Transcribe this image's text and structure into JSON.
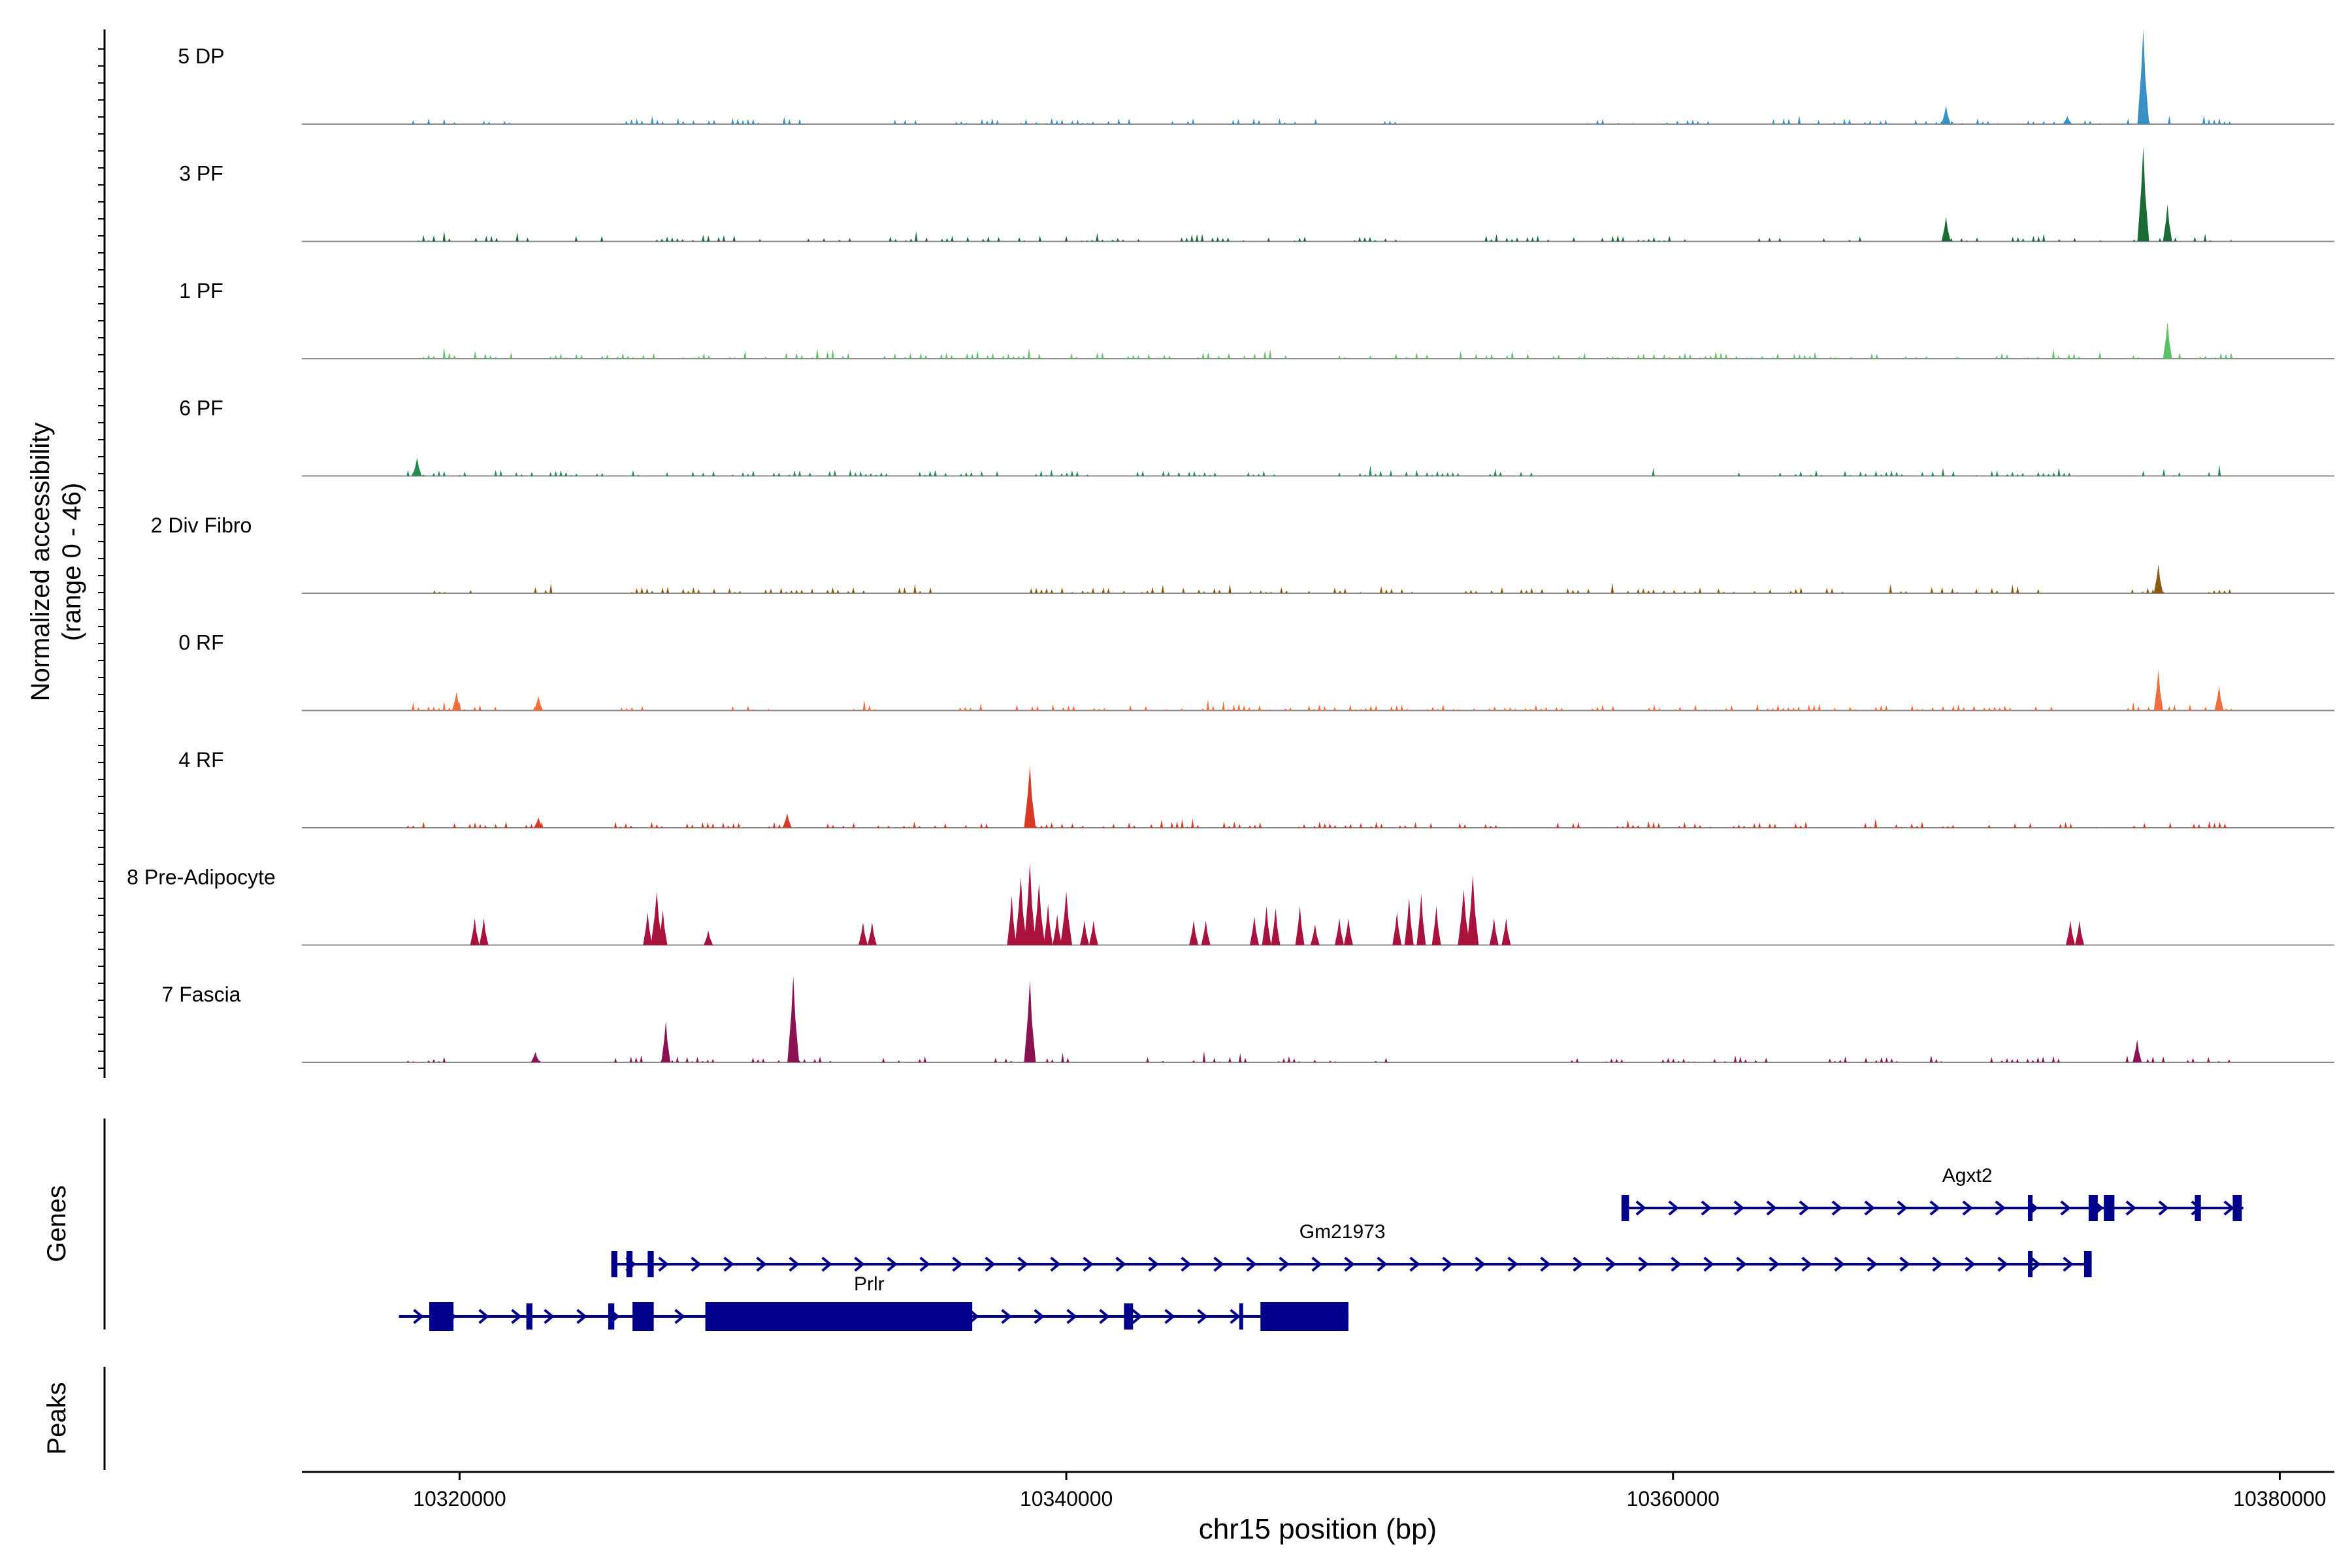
{
  "chart_data": {
    "type": "area",
    "title": "",
    "ylabel_line1": "Normalized accessibility",
    "ylabel_line2": "(range 0 - 46)",
    "xlabel": "chr15 position (bp)",
    "chromosome": "chr15",
    "xlim": [
      10314800,
      10381800
    ],
    "ylim": [
      0,
      46
    ],
    "x_ticks": [
      10320000,
      10340000,
      10360000,
      10380000
    ],
    "x_tick_labels": [
      "10320000",
      "10340000",
      "10360000",
      "10380000"
    ],
    "tracks": [
      {
        "name": "5 DP",
        "color": "#3a8fc7",
        "regions": [
          [
            10318300,
            10320300
          ],
          [
            10320800,
            10321800
          ],
          [
            10325500,
            10328500
          ],
          [
            10329000,
            10331800
          ],
          [
            10333500,
            10335200
          ],
          [
            10336200,
            10337800
          ],
          [
            10338500,
            10342200
          ],
          [
            10343500,
            10345000
          ],
          [
            10345500,
            10348500
          ],
          [
            10350500,
            10351000
          ],
          [
            10357000,
            10359200
          ],
          [
            10359800,
            10362500
          ],
          [
            10362800,
            10364200
          ],
          [
            10364800,
            10367200
          ],
          [
            10368000,
            10370800
          ],
          [
            10371200,
            10374500
          ],
          [
            10375000,
            10376500
          ],
          [
            10377500,
            10378500
          ]
        ],
        "peaks": [
          [
            10369000,
            9
          ],
          [
            10375500,
            46
          ],
          [
            10373000,
            4
          ]
        ]
      },
      {
        "name": "3 PF",
        "color": "#1a6b35",
        "regions": [
          [
            10318300,
            10319800
          ],
          [
            10320200,
            10322300
          ],
          [
            10323500,
            10325000
          ],
          [
            10326500,
            10330500
          ],
          [
            10331500,
            10333500
          ],
          [
            10334200,
            10339500
          ],
          [
            10340000,
            10342500
          ],
          [
            10343800,
            10346000
          ],
          [
            10346500,
            10348000
          ],
          [
            10349500,
            10351000
          ],
          [
            10353500,
            10357000
          ],
          [
            10357500,
            10361500
          ],
          [
            10362500,
            10364000
          ],
          [
            10364800,
            10366800
          ],
          [
            10369000,
            10370500
          ],
          [
            10371200,
            10374200
          ],
          [
            10375200,
            10376600
          ],
          [
            10377200,
            10378500
          ]
        ],
        "peaks": [
          [
            10369000,
            12
          ],
          [
            10375500,
            46
          ],
          [
            10376300,
            18
          ]
        ]
      },
      {
        "name": "1 PF",
        "color": "#5cc064",
        "regions": [
          [
            10318300,
            10322000
          ],
          [
            10323000,
            10326500
          ],
          [
            10327200,
            10333000
          ],
          [
            10333500,
            10339500
          ],
          [
            10340000,
            10343500
          ],
          [
            10344000,
            10348000
          ],
          [
            10349000,
            10352000
          ],
          [
            10353000,
            10357200
          ],
          [
            10357500,
            10363500
          ],
          [
            10364000,
            10367000
          ],
          [
            10367500,
            10370000
          ],
          [
            10370500,
            10374500
          ],
          [
            10375000,
            10378500
          ]
        ],
        "peaks": [
          [
            10376300,
            18
          ]
        ]
      },
      {
        "name": "6 PF",
        "color": "#228b4f",
        "regions": [
          [
            10318300,
            10322800
          ],
          [
            10323000,
            10326000
          ],
          [
            10326500,
            10328500
          ],
          [
            10329000,
            10331800
          ],
          [
            10332200,
            10334200
          ],
          [
            10335000,
            10337800
          ],
          [
            10339000,
            10340800
          ],
          [
            10341500,
            10345200
          ],
          [
            10346000,
            10347000
          ],
          [
            10349000,
            10353000
          ],
          [
            10353800,
            10355500
          ],
          [
            10358500,
            10359500
          ],
          [
            10362000,
            10365000
          ],
          [
            10365500,
            10369500
          ],
          [
            10370000,
            10373200
          ],
          [
            10375500,
            10377000
          ],
          [
            10377500,
            10378500
          ]
        ],
        "peaks": [
          [
            10318600,
            9
          ]
        ]
      },
      {
        "name": "2 Div Fibro",
        "color": "#8b5a12",
        "regions": [
          [
            10319000,
            10321500
          ],
          [
            10322500,
            10323200
          ],
          [
            10325500,
            10333500
          ],
          [
            10334500,
            10336500
          ],
          [
            10338500,
            10342000
          ],
          [
            10342500,
            10347500
          ],
          [
            10348000,
            10351500
          ],
          [
            10353000,
            10354500
          ],
          [
            10355000,
            10357500
          ],
          [
            10358000,
            10361000
          ],
          [
            10361500,
            10366000
          ],
          [
            10367000,
            10369500
          ],
          [
            10370000,
            10372500
          ],
          [
            10374800,
            10376800
          ],
          [
            10377500,
            10378500
          ]
        ],
        "peaks": [
          [
            10376000,
            14
          ]
        ]
      },
      {
        "name": "0 RF",
        "color": "#ef6e3d",
        "regions": [
          [
            10318300,
            10320300
          ],
          [
            10320500,
            10321500
          ],
          [
            10322300,
            10322900
          ],
          [
            10325000,
            10326200
          ],
          [
            10329000,
            10330500
          ],
          [
            10333000,
            10333800
          ],
          [
            10336500,
            10337200
          ],
          [
            10338200,
            10344000
          ],
          [
            10344500,
            10347500
          ],
          [
            10348000,
            10356500
          ],
          [
            10357000,
            10372500
          ],
          [
            10375000,
            10378500
          ]
        ],
        "peaks": [
          [
            10319900,
            9
          ],
          [
            10322600,
            7
          ],
          [
            10376000,
            20
          ],
          [
            10378000,
            12
          ]
        ]
      },
      {
        "name": "4 RF",
        "color": "#d83a25",
        "regions": [
          [
            10318300,
            10322000
          ],
          [
            10322200,
            10323000
          ],
          [
            10324800,
            10327000
          ],
          [
            10327500,
            10329500
          ],
          [
            10330200,
            10331000
          ],
          [
            10331800,
            10333000
          ],
          [
            10333800,
            10337500
          ],
          [
            10338500,
            10342500
          ],
          [
            10342800,
            10344500
          ],
          [
            10345200,
            10346500
          ],
          [
            10347500,
            10350500
          ],
          [
            10351000,
            10352500
          ],
          [
            10352800,
            10354500
          ],
          [
            10356200,
            10357000
          ],
          [
            10358000,
            10361500
          ],
          [
            10362000,
            10364500
          ],
          [
            10366000,
            10372000
          ],
          [
            10372600,
            10374000
          ],
          [
            10375200,
            10376500
          ],
          [
            10377000,
            10378200
          ]
        ],
        "peaks": [
          [
            10338800,
            30
          ],
          [
            10330800,
            7
          ],
          [
            10322600,
            5
          ]
        ]
      },
      {
        "name": "8 Pre-Adipocyte",
        "color": "#a8123c",
        "regions": [],
        "peaks": [
          [
            10320500,
            13
          ],
          [
            10320800,
            13
          ],
          [
            10326200,
            16
          ],
          [
            10326500,
            26
          ],
          [
            10326700,
            17
          ],
          [
            10328200,
            7
          ],
          [
            10333300,
            11
          ],
          [
            10333600,
            11
          ],
          [
            10338200,
            24
          ],
          [
            10338500,
            33
          ],
          [
            10338800,
            40
          ],
          [
            10339100,
            30
          ],
          [
            10339400,
            20
          ],
          [
            10339700,
            15
          ],
          [
            10340000,
            26
          ],
          [
            10340600,
            12
          ],
          [
            10340900,
            12
          ],
          [
            10344200,
            12
          ],
          [
            10344600,
            12
          ],
          [
            10346200,
            14
          ],
          [
            10346600,
            19
          ],
          [
            10346900,
            18
          ],
          [
            10347700,
            19
          ],
          [
            10348200,
            10
          ],
          [
            10349000,
            13
          ],
          [
            10349300,
            13
          ],
          [
            10350900,
            16
          ],
          [
            10351300,
            23
          ],
          [
            10351700,
            25
          ],
          [
            10352200,
            19
          ],
          [
            10353100,
            27
          ],
          [
            10353400,
            34
          ],
          [
            10354100,
            13
          ],
          [
            10354500,
            13
          ],
          [
            10373100,
            12
          ],
          [
            10373400,
            12
          ]
        ]
      },
      {
        "name": "7 Fascia",
        "color": "#8b1252",
        "regions": [
          [
            10318300,
            10320500
          ],
          [
            10322300,
            10322800
          ],
          [
            10324800,
            10327200
          ],
          [
            10327500,
            10328600
          ],
          [
            10329500,
            10332500
          ],
          [
            10333800,
            10334500
          ],
          [
            10335000,
            10335500
          ],
          [
            10337500,
            10340200
          ],
          [
            10342000,
            10343200
          ],
          [
            10344200,
            10346000
          ],
          [
            10347000,
            10349000
          ],
          [
            10350200,
            10350700
          ],
          [
            10356500,
            10357000
          ],
          [
            10357800,
            10358500
          ],
          [
            10359500,
            10363500
          ],
          [
            10365000,
            10367500
          ],
          [
            10368000,
            10369000
          ],
          [
            10370500,
            10373000
          ],
          [
            10374800,
            10376200
          ],
          [
            10376800,
            10378500
          ]
        ],
        "peaks": [
          [
            10331000,
            42
          ],
          [
            10326800,
            20
          ],
          [
            10338800,
            40
          ],
          [
            10375300,
            11
          ],
          [
            10322500,
            5
          ]
        ]
      }
    ],
    "genes_label": "Genes",
    "peaks_label": "Peaks",
    "genes": [
      {
        "name": "Agxt2",
        "row": 0,
        "start": 10358300,
        "end": 10378800,
        "exons": [
          [
            10358300,
            10358550
          ],
          [
            10371700,
            10371850
          ],
          [
            10373700,
            10374000
          ],
          [
            10374200,
            10374550
          ],
          [
            10377200,
            10377400
          ],
          [
            10378450,
            10378750
          ]
        ],
        "label_pos": 10369700
      },
      {
        "name": "Gm21973",
        "row": 1,
        "start": 10325000,
        "end": 10373800,
        "exons": [
          [
            10325000,
            10325200
          ],
          [
            10325500,
            10325700
          ],
          [
            10326200,
            10326400
          ],
          [
            10371700,
            10371850
          ],
          [
            10373550,
            10373800
          ]
        ],
        "label_pos": 10349100
      },
      {
        "name": "Prlr",
        "row": 2,
        "start": 10318000,
        "end": 10349300,
        "exons": [
          [
            10319000,
            10319800
          ],
          [
            10322200,
            10322400
          ],
          [
            10324900,
            10325100
          ],
          [
            10325700,
            10326400
          ],
          [
            10328100,
            10336900
          ],
          [
            10341900,
            10342200
          ],
          [
            10345700,
            10345800
          ],
          [
            10346400,
            10349300
          ]
        ],
        "label_pos": 10333500
      }
    ]
  }
}
